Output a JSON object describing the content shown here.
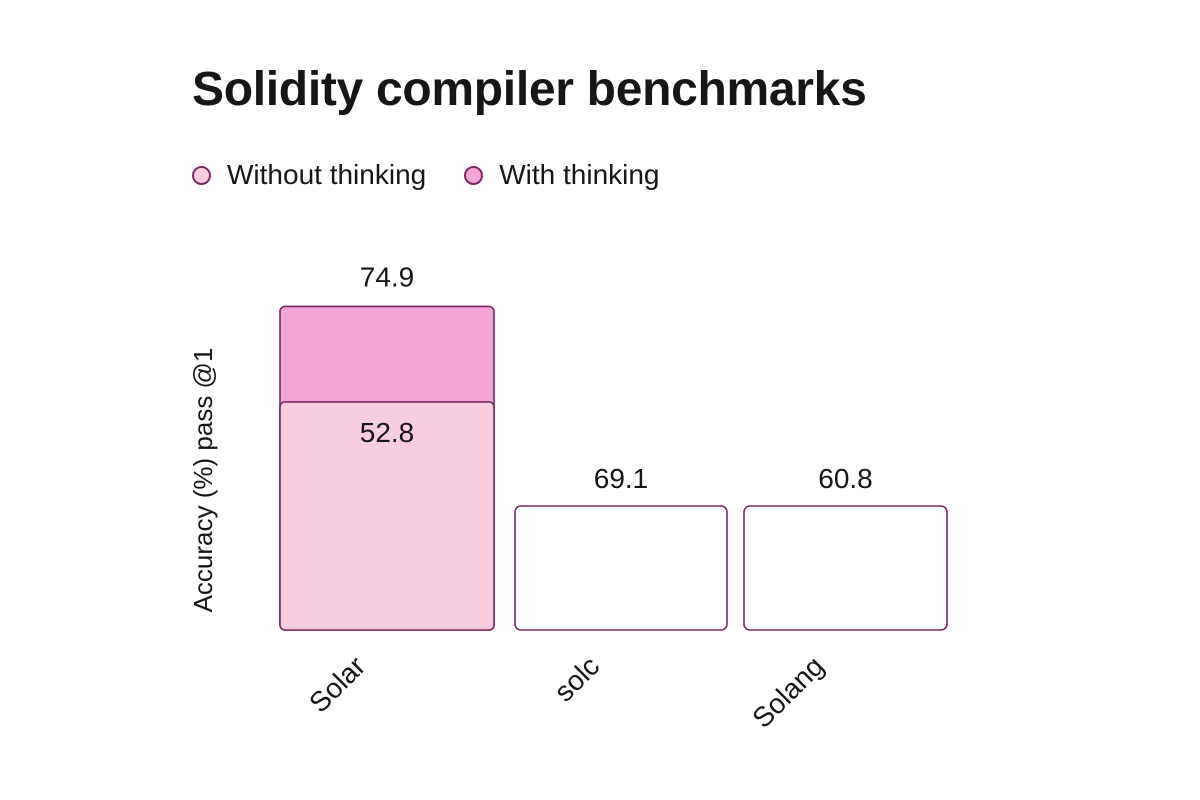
{
  "chart_data": {
    "type": "bar",
    "title": "Solidity compiler benchmarks",
    "ylabel": "Accuracy (%) pass @1",
    "xlabel": "",
    "categories": [
      "Solar",
      "solc",
      "Solang"
    ],
    "series": [
      {
        "name": "Without thinking",
        "values": [
          52.8,
          null,
          null
        ],
        "color": "#f9cde0"
      },
      {
        "name": "With thinking",
        "values": [
          74.9,
          69.1,
          60.8
        ],
        "color": "#f4a5d8"
      }
    ],
    "ylim": [
      0,
      100
    ],
    "grid": false,
    "legend": "top-left",
    "border_color": "#7a2a63"
  }
}
